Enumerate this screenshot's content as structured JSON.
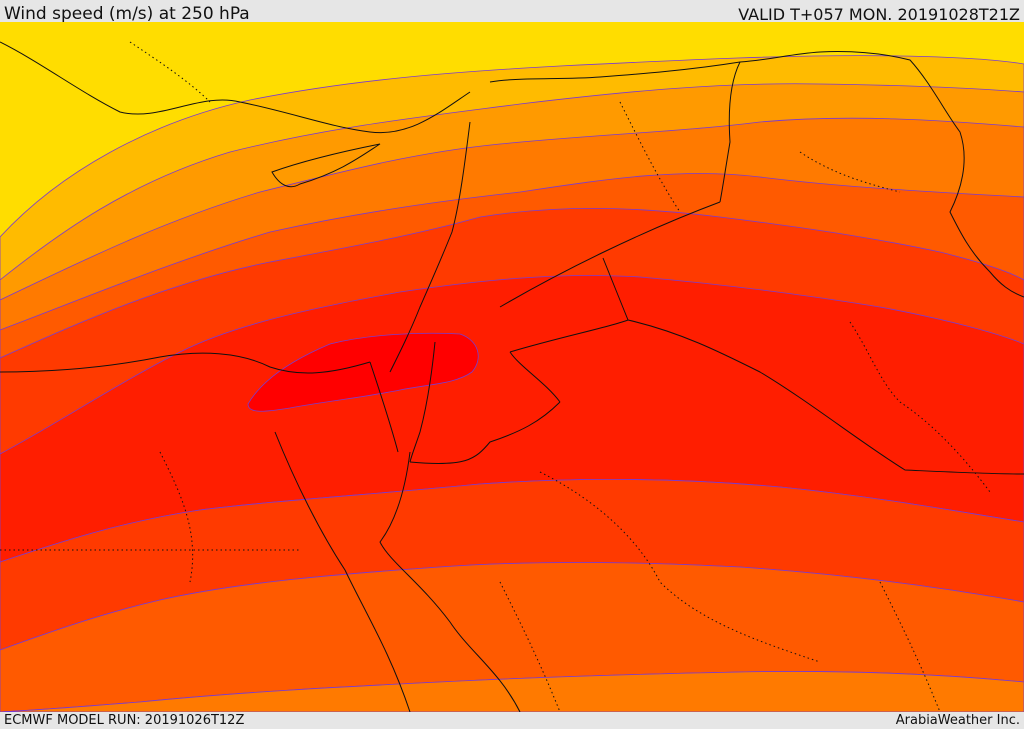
{
  "header": {
    "title": "Wind speed (m/s) at 250 hPa",
    "valid": "VALID T+057 MON. 20191028T21Z"
  },
  "footer": {
    "model_run": "ECMWF MODEL RUN: 20191026T12Z",
    "brand": "ArabiaWeather Inc."
  },
  "map": {
    "variable": "wind speed at 250 hPa",
    "colors": {
      "band_1": "#ffdd00",
      "band_2": "#ffbb00",
      "band_3": "#ff9a00",
      "band_4": "#ff7a00",
      "band_5": "#ff5a00",
      "band_6": "#ff3a00",
      "band_7": "#ff1e00",
      "band_8": "#ff0000",
      "contour_line": "#7a3bd0",
      "border_line": "#111111"
    }
  }
}
